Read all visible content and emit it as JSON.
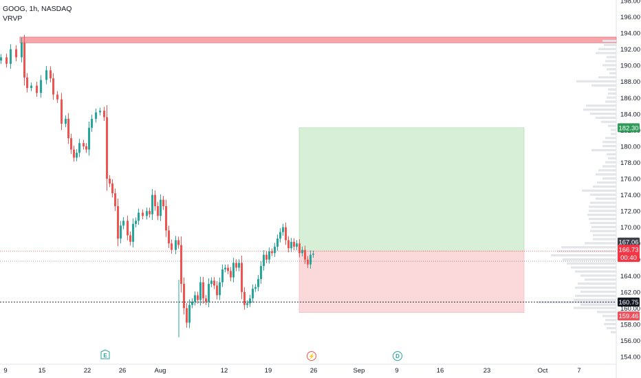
{
  "header": {
    "symbol_line": "GOOG, 1h, NASDAQ",
    "indicator": "VRVP"
  },
  "price_axis": {
    "ticks": [
      "198.00",
      "196.00",
      "194.00",
      "192.00",
      "190.00",
      "188.00",
      "186.00",
      "184.00",
      "182.00",
      "180.00",
      "178.00",
      "176.00",
      "174.00",
      "172.00",
      "170.00",
      "168.00",
      "166.00",
      "164.00",
      "162.00",
      "160.00",
      "158.00",
      "156.00",
      "154.00"
    ],
    "min": 154,
    "max": 198
  },
  "time_axis": {
    "labels": [
      "9",
      "15",
      "22",
      "26",
      "Aug",
      "12",
      "19",
      "26",
      "Sep",
      "9",
      "16",
      "23",
      "Oct",
      "7"
    ]
  },
  "badges": {
    "target": "182.30",
    "last_price": "167.06",
    "current_price": "166.73",
    "countdown": "00:40",
    "line_level": "160.75",
    "stop": "159.46"
  },
  "event_markers": {
    "earnings": "E",
    "split": "⚡",
    "dividend": "D"
  },
  "colors": {
    "up": "#26a69a",
    "down": "#ef5350",
    "profit_zone": "#d7efd7",
    "loss_zone": "#fbd9db",
    "resistance_band": "#f7a4aa",
    "volume_profile": "#e3e5e9",
    "target_badge": "#2e9b59",
    "stop_badge": "#ef4f5b",
    "current_badge": "#f23645",
    "line_badge": "#131722"
  },
  "chart_data": {
    "type": "candlestick",
    "title": "GOOG, 1h, NASDAQ",
    "ylim": [
      154,
      198
    ],
    "x_period": [
      "Jul 9",
      "Aug 23"
    ],
    "resistance_zone": [
      192.8,
      193.5
    ],
    "long_position": {
      "entry": 167.06,
      "target": 182.3,
      "stop": 159.46
    },
    "horizontal_line": 160.75,
    "close_path": [
      {
        "x": "Jul 9",
        "close": 191.0
      },
      {
        "x": "Jul 10",
        "close": 192.8
      },
      {
        "x": "Jul 11",
        "close": 188.0
      },
      {
        "x": "Jul 12",
        "close": 187.5
      },
      {
        "x": "Jul 15",
        "close": 186.3
      },
      {
        "x": "Jul 16",
        "close": 182.0
      },
      {
        "x": "Jul 17",
        "close": 179.0
      },
      {
        "x": "Jul 18",
        "close": 179.5
      },
      {
        "x": "Jul 19",
        "close": 184.2
      },
      {
        "x": "Jul 22",
        "close": 184.5
      },
      {
        "x": "Jul 23",
        "close": 173.5
      },
      {
        "x": "Jul 24",
        "close": 170.0
      },
      {
        "x": "Jul 25",
        "close": 167.0
      },
      {
        "x": "Jul 26",
        "close": 170.8
      },
      {
        "x": "Jul 29",
        "close": 172.0
      },
      {
        "x": "Jul 30",
        "close": 174.0
      },
      {
        "x": "Jul 31",
        "close": 170.0
      },
      {
        "x": "Aug 1",
        "close": 167.0
      },
      {
        "x": "Aug 2",
        "close": 167.5
      },
      {
        "x": "Aug 5",
        "close": 160.0
      },
      {
        "x": "Aug 6",
        "close": 159.5
      },
      {
        "x": "Aug 7",
        "close": 164.0
      },
      {
        "x": "Aug 8",
        "close": 162.0
      },
      {
        "x": "Aug 9",
        "close": 162.5
      },
      {
        "x": "Aug 12",
        "close": 165.0
      },
      {
        "x": "Aug 13",
        "close": 165.5
      },
      {
        "x": "Aug 14",
        "close": 161.0
      },
      {
        "x": "Aug 15",
        "close": 160.5
      },
      {
        "x": "Aug 16",
        "close": 163.0
      },
      {
        "x": "Aug 19",
        "close": 166.0
      },
      {
        "x": "Aug 20",
        "close": 168.0
      },
      {
        "x": "Aug 21",
        "close": 169.5
      },
      {
        "x": "Aug 22",
        "close": 167.5
      },
      {
        "x": "Aug 23",
        "close": 166.7
      }
    ],
    "volume_profile_note": "Visible range volume profile on right edge"
  }
}
